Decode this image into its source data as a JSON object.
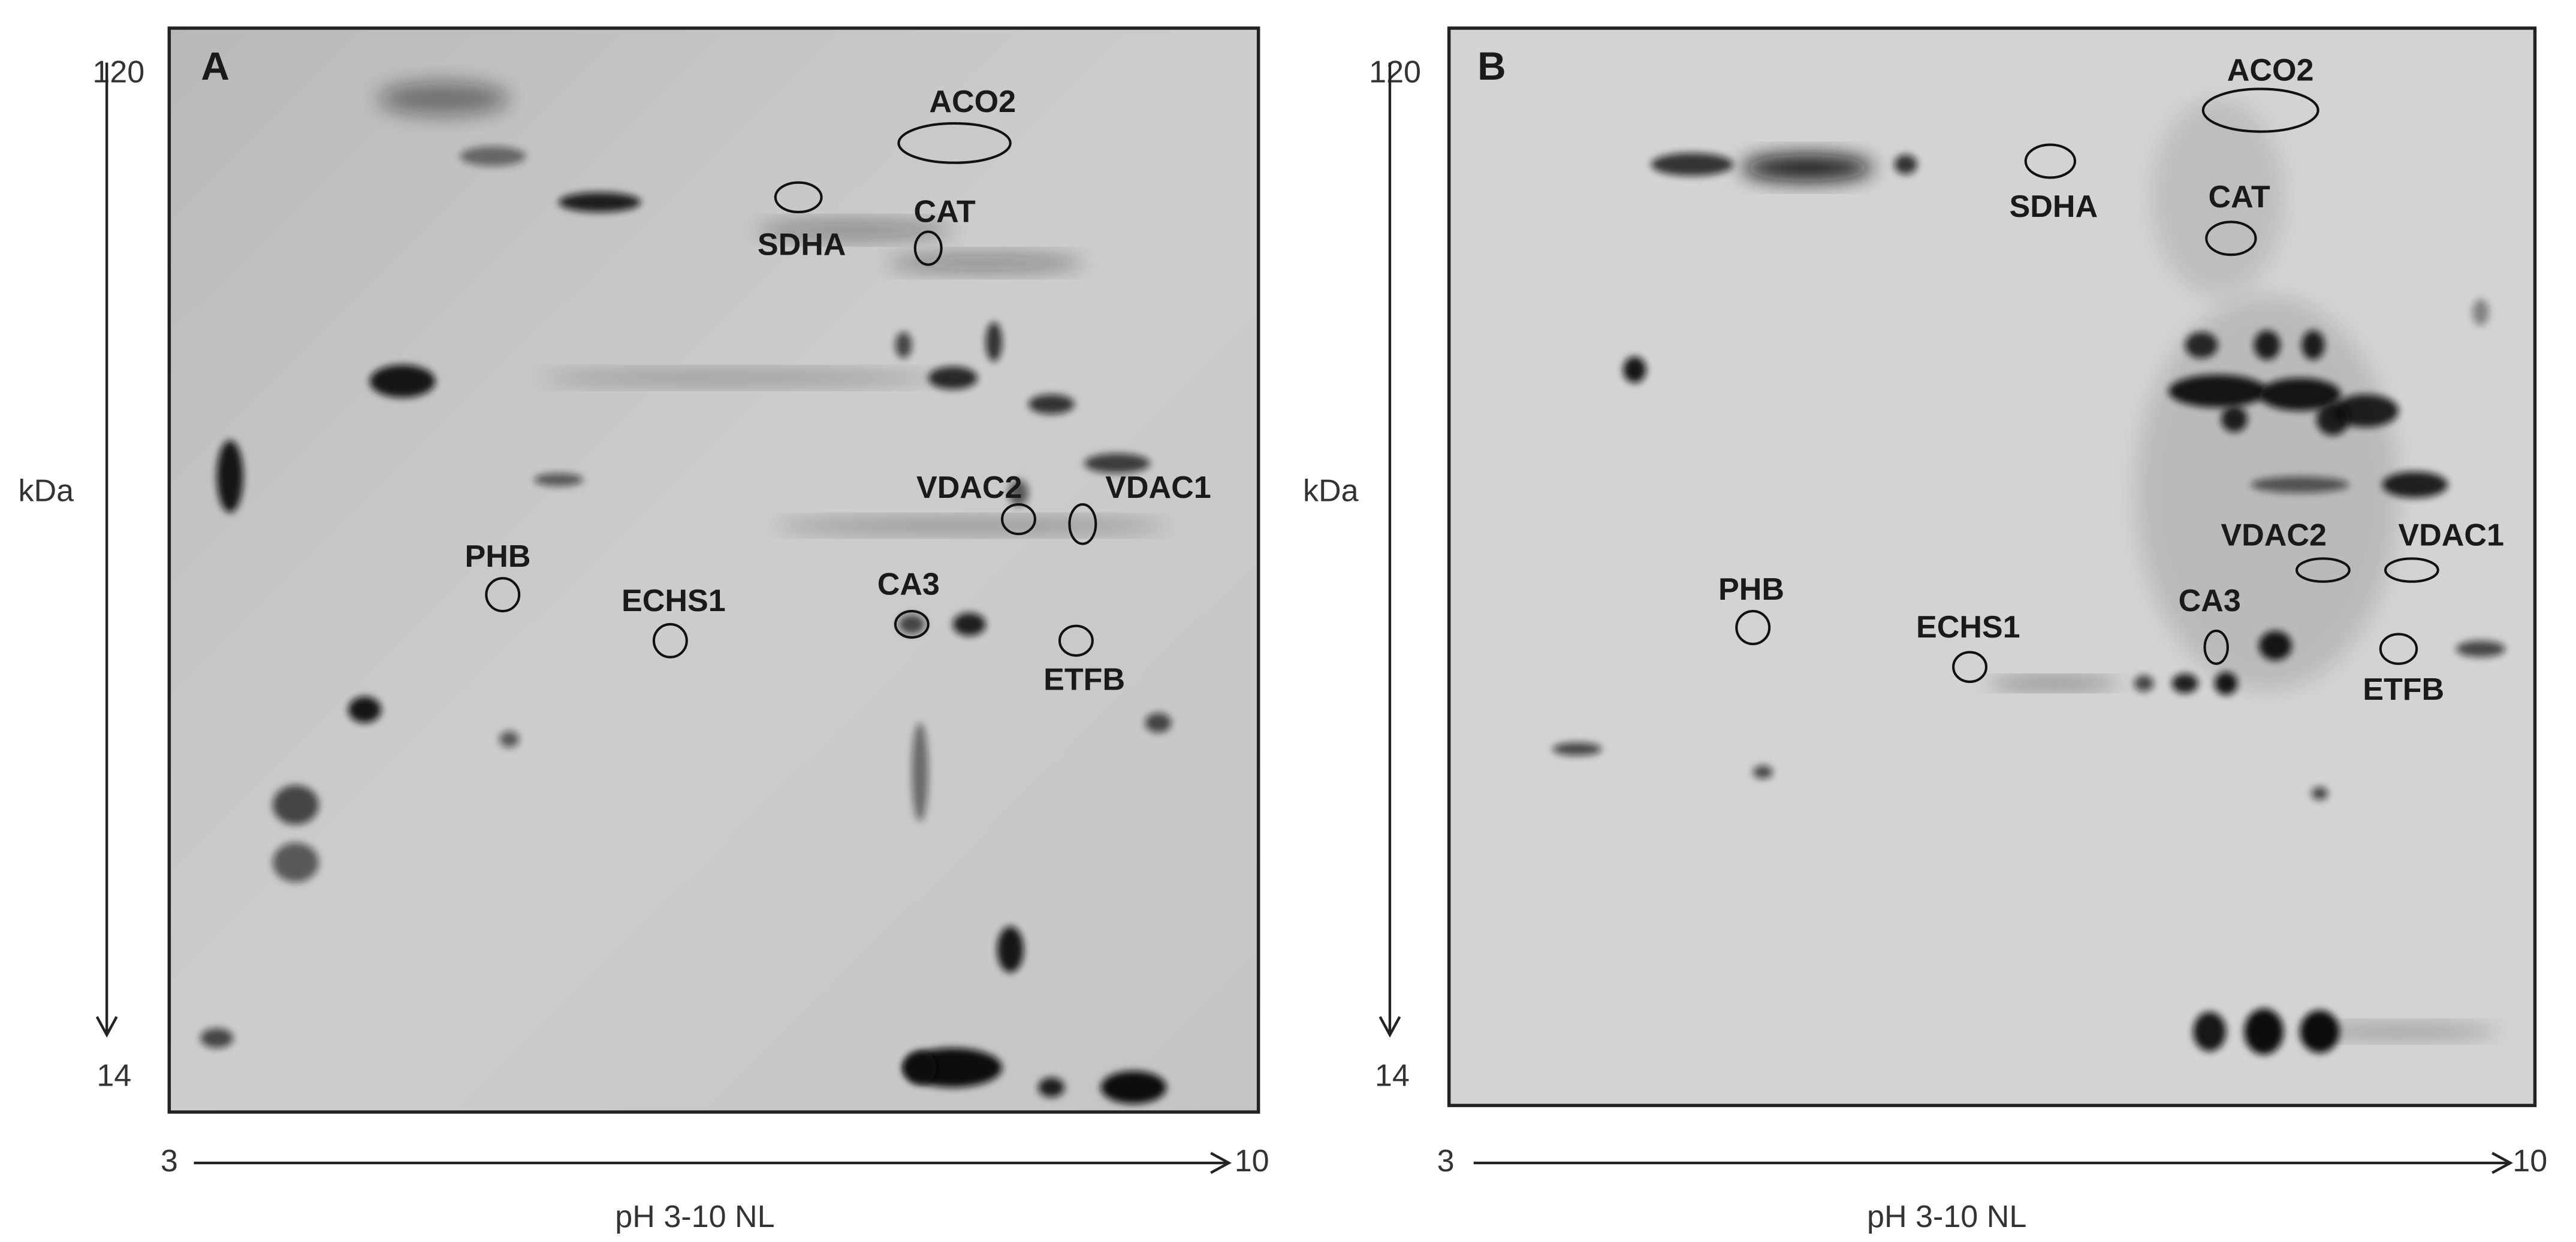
{
  "panels": [
    {
      "label": "A",
      "y_axis": {
        "title": "kDa",
        "top": "120",
        "bottom": "14"
      },
      "x_axis": {
        "title": "pH 3-10 NL",
        "left": "3",
        "right": "10"
      },
      "proteins": [
        "ACO2",
        "SDHA",
        "CAT",
        "VDAC2",
        "VDAC1",
        "PHB",
        "ECHS1",
        "CA3",
        "ETFB"
      ]
    },
    {
      "label": "B",
      "y_axis": {
        "title": "kDa",
        "top": "120",
        "bottom": "14"
      },
      "x_axis": {
        "title": "pH 3-10 NL",
        "left": "3",
        "right": "10"
      },
      "proteins": [
        "ACO2",
        "SDHA",
        "CAT",
        "VDAC2",
        "VDAC1",
        "PHB",
        "ECHS1",
        "CA3",
        "ETFB"
      ]
    }
  ]
}
